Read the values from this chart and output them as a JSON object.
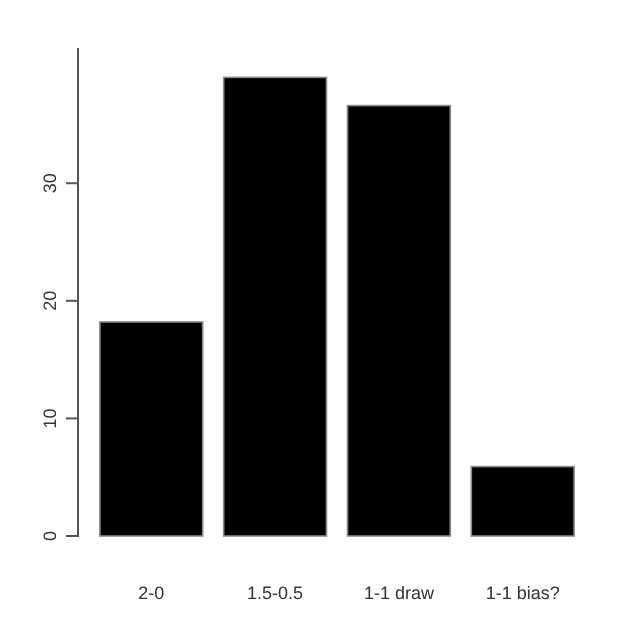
{
  "chart_data": {
    "type": "bar",
    "categories": [
      "2-0",
      "1.5-0.5",
      "1-1 draw",
      "1-1 bias?"
    ],
    "values": [
      18.2,
      39,
      36.6,
      5.9
    ],
    "color": "#000000",
    "ylim": [
      0,
      41.5
    ],
    "yticks": [
      0,
      10,
      20,
      30
    ],
    "grid": false
  }
}
